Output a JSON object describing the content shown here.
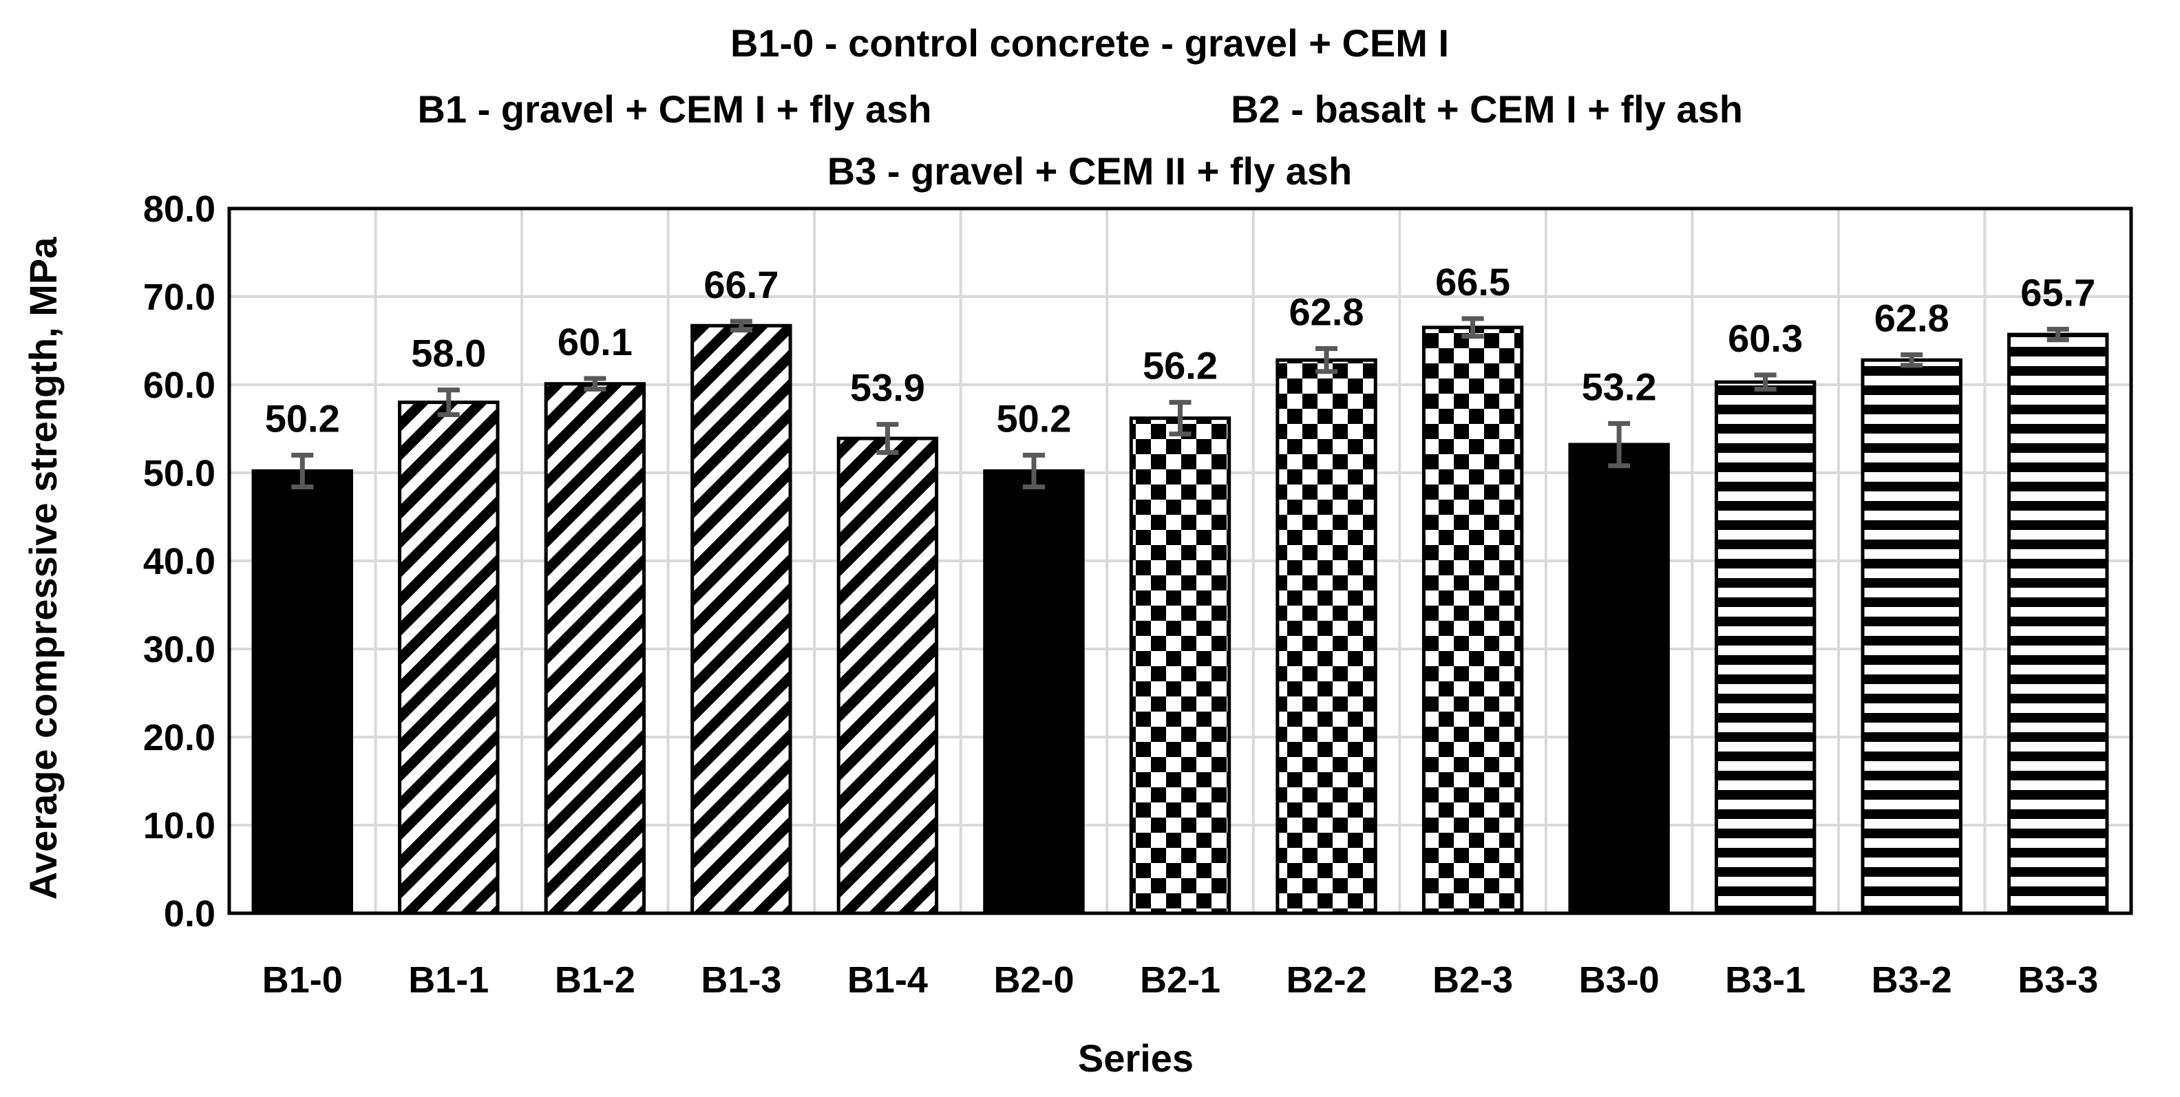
{
  "chart_data": {
    "type": "bar",
    "title_lines": [
      "B1-0 - control concrete - gravel + CEM I",
      "B1 - gravel + CEM I + fly ash",
      "B2 - basalt + CEM I + fly ash",
      "B3 - gravel + CEM II + fly ash"
    ],
    "xlabel": "Series",
    "ylabel": "Average compressive strength, MPa",
    "ylim": [
      0,
      80
    ],
    "yticks": [
      "0.0",
      "10.0",
      "20.0",
      "30.0",
      "40.0",
      "50.0",
      "60.0",
      "70.0",
      "80.0"
    ],
    "ytick_values": [
      0,
      10,
      20,
      30,
      40,
      50,
      60,
      70,
      80
    ],
    "grid": true,
    "categories": [
      "B1-0",
      "B1-1",
      "B1-2",
      "B1-3",
      "B1-4",
      "B2-0",
      "B2-1",
      "B2-2",
      "B2-3",
      "B3-0",
      "B3-1",
      "B3-2",
      "B3-3"
    ],
    "values": [
      50.2,
      58.0,
      60.1,
      66.7,
      53.9,
      50.2,
      56.2,
      62.8,
      66.5,
      53.2,
      60.3,
      62.8,
      65.7
    ],
    "value_labels": [
      "50.2",
      "58.0",
      "60.1",
      "66.7",
      "53.9",
      "50.2",
      "56.2",
      "62.8",
      "66.5",
      "53.2",
      "60.3",
      "62.8",
      "65.7"
    ],
    "errors": [
      1.8,
      1.4,
      0.6,
      0.5,
      1.6,
      1.8,
      1.8,
      1.3,
      1.0,
      2.4,
      0.8,
      0.6,
      0.6
    ],
    "patterns": [
      "solid",
      "diagonal",
      "diagonal",
      "diagonal",
      "diagonal",
      "solid",
      "checker",
      "checker",
      "checker",
      "solid",
      "horizontal",
      "horizontal",
      "horizontal"
    ],
    "colors": {
      "bar": "#000000",
      "background": "#ffffff",
      "grid": "#d9d9d9",
      "error_bar": "#595959",
      "axis": "#000000"
    }
  }
}
